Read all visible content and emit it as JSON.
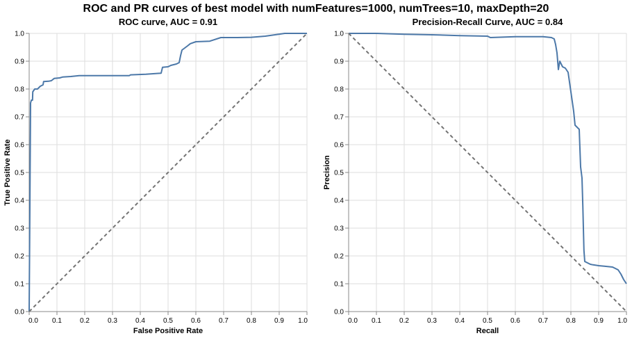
{
  "figure": {
    "title": "ROC and PR curves of best model with numFeatures=1000, numTrees=10, maxDepth=20"
  },
  "colors": {
    "curve": "#4c78a8",
    "baseline": "#737373",
    "grid": "#dddddd",
    "axis": "#888888"
  },
  "chart_data": [
    {
      "type": "line",
      "title": "ROC curve, AUC = 0.91",
      "xlabel": "False Positive Rate",
      "ylabel": "True Positive Rate",
      "xlim": [
        0,
        1
      ],
      "ylim": [
        0,
        1
      ],
      "grid": true,
      "x_ticks": [
        "0.0",
        "0.1",
        "0.2",
        "0.3",
        "0.4",
        "0.5",
        "0.6",
        "0.7",
        "0.8",
        "0.9",
        "1.0"
      ],
      "y_ticks": [
        "0.0",
        "0.1",
        "0.2",
        "0.3",
        "0.4",
        "0.5",
        "0.6",
        "0.7",
        "0.8",
        "0.9",
        "1.0"
      ],
      "series": [
        {
          "values": [
            [
              0,
              0
            ],
            [
              0.002,
              0.3
            ],
            [
              0.004,
              0.6
            ],
            [
              0.005,
              0.75
            ],
            [
              0.008,
              0.76
            ],
            [
              0.012,
              0.76
            ],
            [
              0.013,
              0.79
            ],
            [
              0.02,
              0.8
            ],
            [
              0.03,
              0.8
            ],
            [
              0.04,
              0.81
            ],
            [
              0.05,
              0.815
            ],
            [
              0.052,
              0.827
            ],
            [
              0.07,
              0.828
            ],
            [
              0.08,
              0.83
            ],
            [
              0.09,
              0.838
            ],
            [
              0.11,
              0.84
            ],
            [
              0.12,
              0.843
            ],
            [
              0.15,
              0.845
            ],
            [
              0.18,
              0.848
            ],
            [
              0.25,
              0.848
            ],
            [
              0.36,
              0.848
            ],
            [
              0.365,
              0.851
            ],
            [
              0.42,
              0.853
            ],
            [
              0.46,
              0.856
            ],
            [
              0.475,
              0.857
            ],
            [
              0.48,
              0.878
            ],
            [
              0.5,
              0.88
            ],
            [
              0.51,
              0.885
            ],
            [
              0.53,
              0.89
            ],
            [
              0.54,
              0.895
            ],
            [
              0.545,
              0.92
            ],
            [
              0.55,
              0.94
            ],
            [
              0.57,
              0.955
            ],
            [
              0.58,
              0.963
            ],
            [
              0.6,
              0.97
            ],
            [
              0.65,
              0.972
            ],
            [
              0.69,
              0.985
            ],
            [
              0.75,
              0.985
            ],
            [
              0.8,
              0.986
            ],
            [
              0.85,
              0.99
            ],
            [
              0.92,
              1.0
            ],
            [
              1.0,
              1.0
            ]
          ]
        },
        {
          "values": [
            [
              0,
              0
            ],
            [
              1,
              1
            ]
          ]
        }
      ]
    },
    {
      "type": "line",
      "title": "Precision-Recall Curve,  AUC = 0.84",
      "xlabel": "Recall",
      "ylabel": "Precision",
      "xlim": [
        0,
        1
      ],
      "ylim": [
        0,
        1
      ],
      "grid": true,
      "x_ticks": [
        "0.0",
        "0.1",
        "0.2",
        "0.3",
        "0.4",
        "0.5",
        "0.6",
        "0.7",
        "0.8",
        "0.9",
        "1.0"
      ],
      "y_ticks": [
        "0.0",
        "0.1",
        "0.2",
        "0.3",
        "0.4",
        "0.5",
        "0.6",
        "0.7",
        "0.8",
        "0.9",
        "1.0"
      ],
      "series": [
        {
          "values": [
            [
              0,
              1.0
            ],
            [
              0.1,
              1.0
            ],
            [
              0.2,
              0.997
            ],
            [
              0.3,
              0.995
            ],
            [
              0.4,
              0.992
            ],
            [
              0.5,
              0.99
            ],
            [
              0.51,
              0.985
            ],
            [
              0.6,
              0.988
            ],
            [
              0.7,
              0.988
            ],
            [
              0.73,
              0.985
            ],
            [
              0.74,
              0.98
            ],
            [
              0.745,
              0.96
            ],
            [
              0.75,
              0.93
            ],
            [
              0.755,
              0.87
            ],
            [
              0.76,
              0.9
            ],
            [
              0.77,
              0.88
            ],
            [
              0.78,
              0.875
            ],
            [
              0.79,
              0.86
            ],
            [
              0.8,
              0.79
            ],
            [
              0.81,
              0.72
            ],
            [
              0.815,
              0.67
            ],
            [
              0.82,
              0.665
            ],
            [
              0.83,
              0.655
            ],
            [
              0.832,
              0.6
            ],
            [
              0.835,
              0.52
            ],
            [
              0.84,
              0.48
            ],
            [
              0.843,
              0.38
            ],
            [
              0.845,
              0.3
            ],
            [
              0.847,
              0.22
            ],
            [
              0.85,
              0.18
            ],
            [
              0.86,
              0.175
            ],
            [
              0.87,
              0.17
            ],
            [
              0.88,
              0.168
            ],
            [
              0.9,
              0.165
            ],
            [
              0.92,
              0.163
            ],
            [
              0.95,
              0.16
            ],
            [
              0.96,
              0.155
            ],
            [
              0.97,
              0.15
            ],
            [
              0.98,
              0.135
            ],
            [
              0.99,
              0.115
            ],
            [
              1.0,
              0.1
            ]
          ]
        },
        {
          "values": [
            [
              0,
              1
            ],
            [
              1,
              0
            ]
          ]
        }
      ]
    }
  ]
}
